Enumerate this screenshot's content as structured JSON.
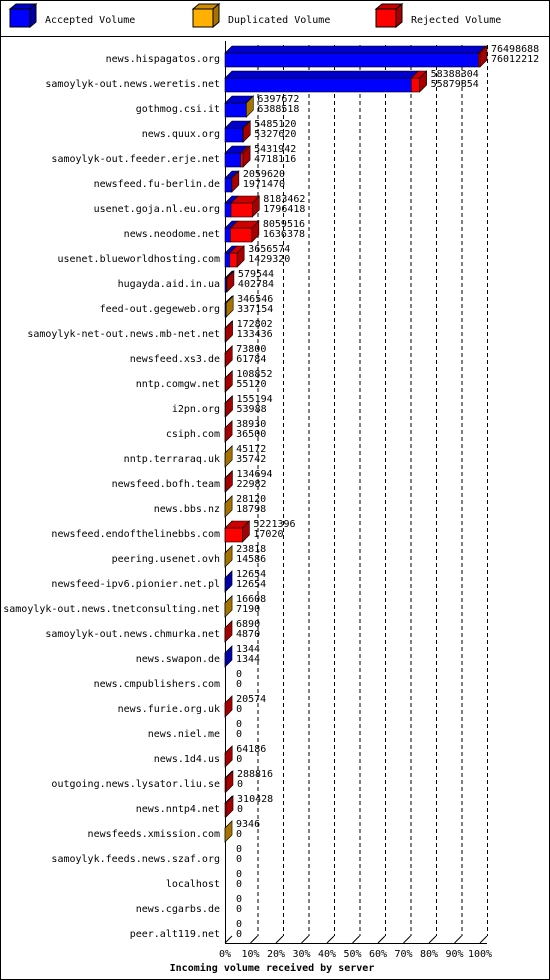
{
  "chart_data": {
    "type": "stacked-bar-3d",
    "xlabel": "Incoming volume received by server",
    "categories": [
      "news.hispagatos.org",
      "samoylyk-out.news.weretis.net",
      "gothmog.csi.it",
      "news.quux.org",
      "samoylyk-out.feeder.erje.net",
      "newsfeed.fu-berlin.de",
      "usenet.goja.nl.eu.org",
      "news.neodome.net",
      "usenet.blueworldhosting.com",
      "hugayda.aid.in.ua",
      "feed-out.gegeweb.org",
      "samoylyk-net-out.news.mb-net.net",
      "newsfeed.xs3.de",
      "nntp.comgw.net",
      "i2pn.org",
      "csiph.com",
      "nntp.terraraq.uk",
      "newsfeed.bofh.team",
      "news.bbs.nz",
      "newsfeed.endofthelinebbs.com",
      "peering.usenet.ovh",
      "newsfeed-ipv6.pionier.net.pl",
      "samoylyk-out.news.tnetconsulting.net",
      "samoylyk-out.news.chmurka.net",
      "news.swapon.de",
      "news.cmpublishers.com",
      "news.furie.org.uk",
      "news.niel.me",
      "news.1d4.us",
      "outgoing.news.lysator.liu.se",
      "news.nntp4.net",
      "newsfeeds.xmission.com",
      "samoylyk.feeds.news.szaf.org",
      "localhost",
      "news.cgarbs.de",
      "peer.alt119.net"
    ],
    "totals": [
      76498688,
      58388304,
      6397672,
      5485120,
      5431942,
      2059620,
      8183462,
      8059516,
      3656574,
      579544,
      346546,
      172802,
      73800,
      108852,
      155194,
      38930,
      45172,
      134694,
      28120,
      5221396,
      23818,
      12654,
      16608,
      6890,
      1344,
      0,
      20574,
      0,
      64186,
      288816,
      310428,
      9346,
      0,
      0,
      0,
      0
    ],
    "series": [
      {
        "name": "Accepted Volume",
        "color": "#0000ff",
        "values": [
          76012212,
          55879854,
          6388518,
          5327620,
          4718116,
          1971470,
          1796418,
          1636378,
          1429320,
          402784,
          337154,
          133436,
          61784,
          55120,
          53988,
          36500,
          35742,
          22982,
          18798,
          17020,
          14586,
          12654,
          7190,
          4870,
          1344,
          0,
          0,
          0,
          0,
          0,
          0,
          0,
          0,
          0,
          0,
          0
        ]
      },
      {
        "name": "Duplicated Volume",
        "color": "#ffb000",
        "values": [
          0,
          0,
          9154,
          0,
          0,
          0,
          0,
          0,
          0,
          0,
          9392,
          0,
          0,
          0,
          0,
          0,
          9430,
          0,
          9322,
          0,
          9232,
          0,
          9418,
          0,
          0,
          0,
          0,
          0,
          0,
          0,
          0,
          9346,
          0,
          0,
          0,
          0
        ]
      },
      {
        "name": "Rejected Volume",
        "color": "#ff0000",
        "values": [
          486476,
          2508450,
          0,
          157500,
          713826,
          88150,
          6387044,
          6423138,
          2227254,
          176760,
          0,
          39366,
          12016,
          53732,
          101206,
          2430,
          0,
          111712,
          0,
          5204376,
          0,
          0,
          0,
          2020,
          0,
          0,
          20574,
          0,
          64186,
          288816,
          310428,
          0,
          0,
          0,
          0,
          0
        ]
      }
    ],
    "xlim": [
      0,
      76498688
    ],
    "xticks": [
      {
        "value": 0,
        "label": "0%"
      },
      {
        "value": 7649868.8,
        "label": "10%"
      },
      {
        "value": 15299737.6,
        "label": "20%"
      },
      {
        "value": 22949606.4,
        "label": "30%"
      },
      {
        "value": 30599475.2,
        "label": "40%"
      },
      {
        "value": 38249344,
        "label": "50%"
      },
      {
        "value": 45899212.8,
        "label": "60%"
      },
      {
        "value": 53549081.6,
        "label": "70%"
      },
      {
        "value": 61198950.4,
        "label": "80%"
      },
      {
        "value": 68848819.2,
        "label": "90%"
      },
      {
        "value": 76498688,
        "label": "100%"
      }
    ],
    "grid": true
  }
}
